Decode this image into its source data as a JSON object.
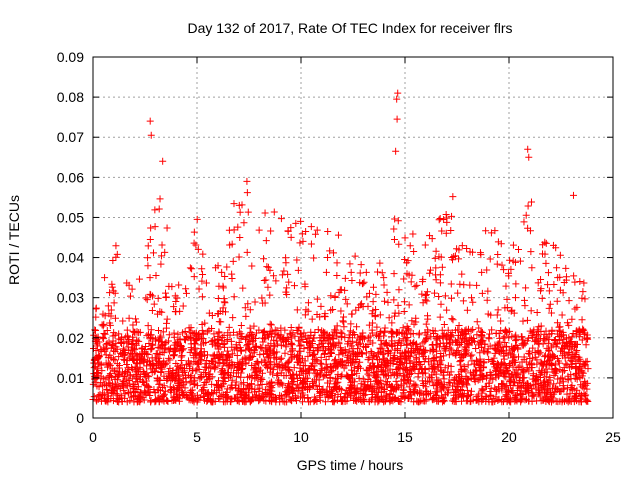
{
  "chart_data": {
    "type": "scatter",
    "title": "Day 132 of 2017, Rate Of TEC Index for receiver flrs",
    "xlabel": "GPS time / hours",
    "ylabel": "ROTI / TECUs",
    "xlim": [
      0,
      25
    ],
    "ylim": [
      0,
      0.09
    ],
    "x_ticks": [
      0,
      5,
      10,
      15,
      20,
      25
    ],
    "y_ticks": [
      0,
      0.01,
      0.02,
      0.03,
      0.04,
      0.05,
      0.06,
      0.07,
      0.08,
      0.09
    ],
    "x_tick_labels": [
      "0",
      "5",
      "10",
      "15",
      "20",
      "25"
    ],
    "y_tick_labels": [
      "0",
      "0.01",
      "0.02",
      "0.03",
      "0.04",
      "0.05",
      "0.06",
      "0.07",
      "0.08",
      "0.09"
    ],
    "grid": true,
    "marker": "plus",
    "marker_color": "#ff0000",
    "data_x_range": [
      0,
      23.8
    ],
    "notable_points": [
      {
        "x": 2.75,
        "y": 0.074
      },
      {
        "x": 2.8,
        "y": 0.0705
      },
      {
        "x": 3.35,
        "y": 0.064
      },
      {
        "x": 14.65,
        "y": 0.081
      },
      {
        "x": 14.6,
        "y": 0.0795
      },
      {
        "x": 14.62,
        "y": 0.0745
      },
      {
        "x": 14.55,
        "y": 0.0665
      },
      {
        "x": 20.9,
        "y": 0.067
      },
      {
        "x": 20.95,
        "y": 0.065
      },
      {
        "x": 23.1,
        "y": 0.0555
      },
      {
        "x": 7.4,
        "y": 0.059
      },
      {
        "x": 17.3,
        "y": 0.0552
      }
    ],
    "envelope": {
      "x": [
        0,
        1,
        2,
        2.7,
        3.3,
        4,
        5,
        6,
        6.5,
        7.5,
        8.5,
        9.5,
        10.5,
        11.5,
        12.5,
        13.5,
        14.2,
        14.6,
        15,
        16,
        17.3,
        18,
        19,
        20,
        20.9,
        21.5,
        22.5,
        23.3,
        23.8
      ],
      "y": [
        0.028,
        0.044,
        0.034,
        0.052,
        0.058,
        0.035,
        0.05,
        0.039,
        0.054,
        0.057,
        0.052,
        0.05,
        0.048,
        0.05,
        0.04,
        0.044,
        0.033,
        0.055,
        0.048,
        0.044,
        0.055,
        0.045,
        0.05,
        0.04,
        0.058,
        0.045,
        0.043,
        0.038,
        0.036
      ]
    },
    "dense_band": [
      0.004,
      0.022
    ]
  },
  "colors": {
    "marker": "#ff0000",
    "grid": "#a0a0a0",
    "axis": "#000000",
    "background": "#ffffff"
  }
}
